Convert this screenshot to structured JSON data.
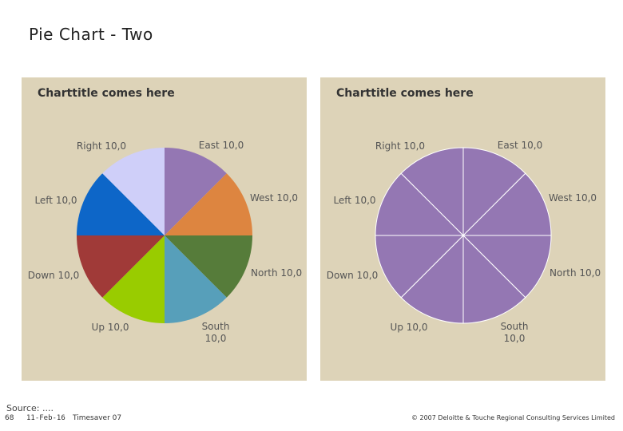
{
  "slide": {
    "title": "Pie Chart - Two",
    "source": "Source: ....",
    "footer": {
      "page_number": "68",
      "date": "11-Feb-16",
      "version": "Timesaver 07",
      "copyright": "© 2007 Deloitte & Touche Regional Consulting Services Limited"
    }
  },
  "chart_data": [
    {
      "type": "pie",
      "title": "Charttitle comes here",
      "slices": [
        {
          "label": "East",
          "value": "10,0",
          "amount": 10,
          "color": "#9477b3"
        },
        {
          "label": "West",
          "value": "10,0",
          "amount": 10,
          "color": "#dd8540"
        },
        {
          "label": "North",
          "value": "10,0",
          "amount": 10,
          "color": "#567c3a"
        },
        {
          "label": "South",
          "value": "10,0",
          "amount": 10,
          "color": "#579fba"
        },
        {
          "label": "Up",
          "value": "10,0",
          "amount": 10,
          "color": "#99cc00"
        },
        {
          "label": "Down",
          "value": "10,0",
          "amount": 10,
          "color": "#a03a38"
        },
        {
          "label": "Left",
          "value": "10,0",
          "amount": 10,
          "color": "#0d66c8"
        },
        {
          "label": "Right",
          "value": "10,0",
          "amount": 10,
          "color": "#cfcff9"
        }
      ]
    },
    {
      "type": "pie",
      "title": "Charttitle comes here",
      "slices": [
        {
          "label": "East",
          "value": "10,0",
          "amount": 10,
          "color": "#9477b3"
        },
        {
          "label": "West",
          "value": "10,0",
          "amount": 10,
          "color": "#9477b3"
        },
        {
          "label": "North",
          "value": "10,0",
          "amount": 10,
          "color": "#9477b3"
        },
        {
          "label": "South",
          "value": "10,0",
          "amount": 10,
          "color": "#9477b3"
        },
        {
          "label": "Up",
          "value": "10,0",
          "amount": 10,
          "color": "#9477b3"
        },
        {
          "label": "Down",
          "value": "10,0",
          "amount": 10,
          "color": "#9477b3"
        },
        {
          "label": "Left",
          "value": "10,0",
          "amount": 10,
          "color": "#9477b3"
        },
        {
          "label": "Right",
          "value": "10,0",
          "amount": 10,
          "color": "#9477b3"
        }
      ],
      "slice_border_color": "#ffffff"
    }
  ]
}
